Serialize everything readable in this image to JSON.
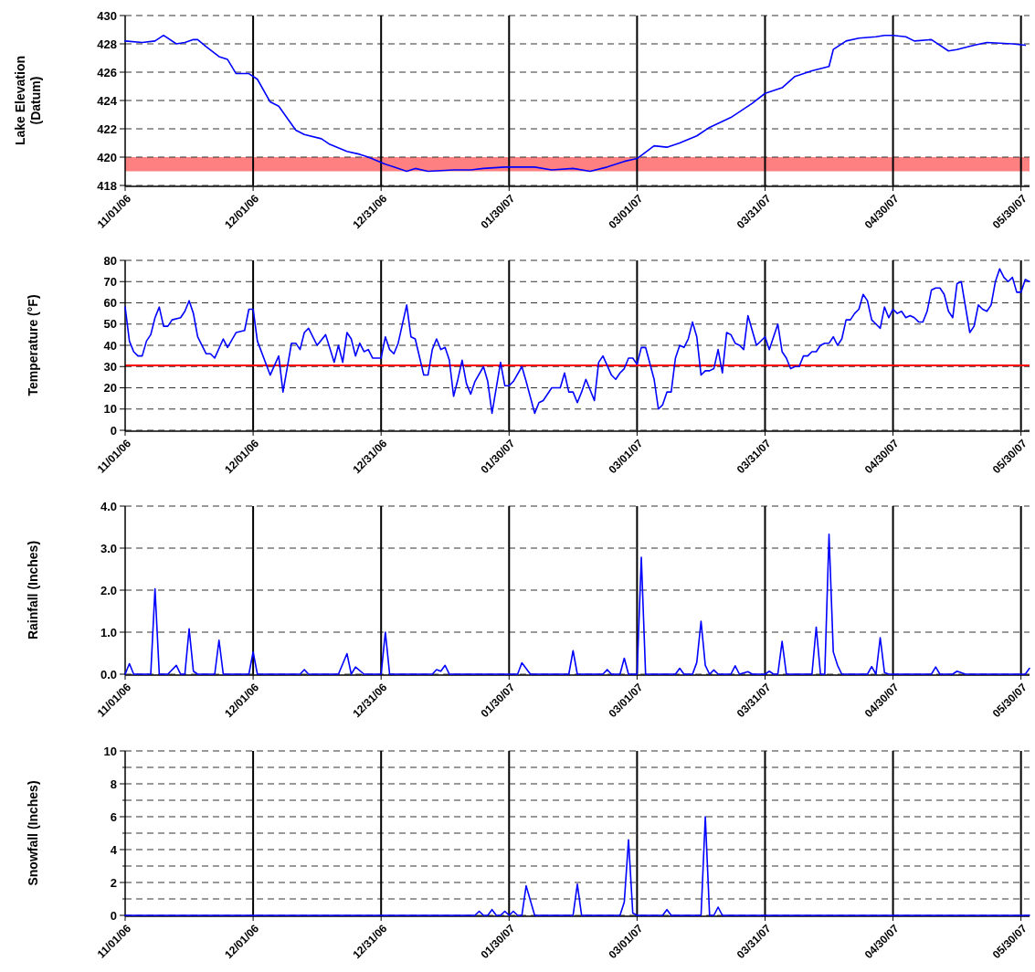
{
  "chart_data": [
    {
      "type": "line",
      "ylabel": "Lake Elevation\n(Datum)",
      "xlim": [
        "2006-11-01",
        "2007-06-01"
      ],
      "xticks": [
        {
          "value": "2006-11-01",
          "label": "11/01/06"
        },
        {
          "value": "2006-12-01",
          "label": "12/01/06"
        },
        {
          "value": "2006-12-31",
          "label": "12/31/06"
        },
        {
          "value": "2007-01-30",
          "label": "01/30/07"
        },
        {
          "value": "2007-03-01",
          "label": "03/01/07"
        },
        {
          "value": "2007-03-31",
          "label": "03/31/07"
        },
        {
          "value": "2007-04-30",
          "label": "04/30/07"
        },
        {
          "value": "2007-05-30",
          "label": "05/30/07"
        }
      ],
      "ylim": [
        418,
        430
      ],
      "yticks": [
        418,
        420,
        422,
        424,
        426,
        428,
        430
      ],
      "grid": true,
      "bands": [
        {
          "axis": "y",
          "from": 419,
          "to": 420,
          "color": "#ff8080"
        }
      ],
      "x": [
        "2006-11-01",
        "2006-11-05",
        "2006-11-08",
        "2006-11-10",
        "2006-11-13",
        "2006-11-15",
        "2006-11-17",
        "2006-11-18",
        "2006-11-20",
        "2006-11-23",
        "2006-11-25",
        "2006-11-27",
        "2006-11-30",
        "2006-12-02",
        "2006-12-05",
        "2006-12-07",
        "2006-12-11",
        "2006-12-13",
        "2006-12-17",
        "2006-12-19",
        "2006-12-23",
        "2006-12-26",
        "2006-12-28",
        "2007-01-01",
        "2007-01-03",
        "2007-01-06",
        "2007-01-08",
        "2007-01-11",
        "2007-01-17",
        "2007-01-21",
        "2007-01-24",
        "2007-01-29",
        "2007-02-05",
        "2007-02-09",
        "2007-02-14",
        "2007-02-18",
        "2007-02-22",
        "2007-02-26",
        "2007-03-01",
        "2007-03-05",
        "2007-03-08",
        "2007-03-11",
        "2007-03-15",
        "2007-03-18",
        "2007-03-23",
        "2007-03-28",
        "2007-03-31",
        "2007-04-04",
        "2007-04-07",
        "2007-04-11",
        "2007-04-15",
        "2007-04-16",
        "2007-04-19",
        "2007-04-22",
        "2007-04-26",
        "2007-04-28",
        "2007-04-30",
        "2007-05-03",
        "2007-05-05",
        "2007-05-09",
        "2007-05-13",
        "2007-05-15",
        "2007-05-19",
        "2007-05-22",
        "2007-05-28",
        "2007-05-31"
      ],
      "series": [
        {
          "color": "#0000ff",
          "values": [
            428.2,
            428.1,
            428.2,
            428.6,
            428.0,
            428.1,
            428.3,
            428.3,
            427.8,
            427.1,
            426.9,
            425.9,
            425.9,
            425.5,
            423.9,
            423.6,
            421.9,
            421.6,
            421.3,
            420.9,
            420.4,
            420.2,
            420.0,
            419.5,
            419.3,
            419.0,
            419.2,
            419.0,
            419.1,
            419.1,
            419.2,
            419.3,
            419.3,
            419.1,
            419.2,
            419.0,
            419.3,
            419.7,
            419.9,
            420.8,
            420.7,
            421.0,
            421.5,
            422.1,
            422.8,
            423.8,
            424.5,
            424.9,
            425.7,
            426.1,
            426.4,
            427.6,
            428.2,
            428.4,
            428.5,
            428.6,
            428.6,
            428.5,
            428.2,
            428.3,
            427.5,
            427.6,
            427.9,
            428.1,
            428.0,
            427.9
          ]
        }
      ]
    },
    {
      "type": "line",
      "ylabel": "Temperature (°F)",
      "xlim": [
        "2006-11-01",
        "2007-06-01"
      ],
      "xticks": [
        {
          "value": "2006-11-01",
          "label": "11/01/06"
        },
        {
          "value": "2006-12-01",
          "label": "12/01/06"
        },
        {
          "value": "2006-12-31",
          "label": "12/31/06"
        },
        {
          "value": "2007-01-30",
          "label": "01/30/07"
        },
        {
          "value": "2007-03-01",
          "label": "03/01/07"
        },
        {
          "value": "2007-03-31",
          "label": "03/31/07"
        },
        {
          "value": "2007-04-30",
          "label": "04/30/07"
        },
        {
          "value": "2007-05-30",
          "label": "05/30/07"
        }
      ],
      "ylim": [
        0,
        80
      ],
      "yticks": [
        0,
        10,
        20,
        30,
        40,
        50,
        60,
        70,
        80
      ],
      "grid": true,
      "ref_lines": [
        {
          "axis": "y",
          "value": 30.5,
          "color": "#ff0000"
        }
      ],
      "x": [
        "2006-11-01",
        "2006-11-02",
        "2006-11-03",
        "2006-11-04",
        "2006-11-05",
        "2006-11-06",
        "2006-11-07",
        "2006-11-08",
        "2006-11-09",
        "2006-11-10",
        "2006-11-11",
        "2006-11-12",
        "2006-11-14",
        "2006-11-15",
        "2006-11-16",
        "2006-11-17",
        "2006-11-18",
        "2006-11-20",
        "2006-11-21",
        "2006-11-22",
        "2006-11-24",
        "2006-11-25",
        "2006-11-27",
        "2006-11-29",
        "2006-11-30",
        "2006-12-01",
        "2006-12-02",
        "2006-12-05",
        "2006-12-07",
        "2006-12-08",
        "2006-12-10",
        "2006-12-11",
        "2006-12-12",
        "2006-12-13",
        "2006-12-14",
        "2006-12-16",
        "2006-12-18",
        "2006-12-20",
        "2006-12-21",
        "2006-12-22",
        "2006-12-23",
        "2006-12-24",
        "2006-12-25",
        "2006-12-26",
        "2006-12-27",
        "2006-12-28",
        "2006-12-29",
        "2006-12-31",
        "2007-01-01",
        "2007-01-02",
        "2007-01-03",
        "2007-01-04",
        "2007-01-06",
        "2007-01-07",
        "2007-01-08",
        "2007-01-10",
        "2007-01-11",
        "2007-01-12",
        "2007-01-13",
        "2007-01-14",
        "2007-01-15",
        "2007-01-16",
        "2007-01-17",
        "2007-01-18",
        "2007-01-19",
        "2007-01-20",
        "2007-01-21",
        "2007-01-22",
        "2007-01-24",
        "2007-01-25",
        "2007-01-26",
        "2007-01-28",
        "2007-01-29",
        "2007-01-30",
        "2007-01-31",
        "2007-02-02",
        "2007-02-03",
        "2007-02-05",
        "2007-02-06",
        "2007-02-07",
        "2007-02-09",
        "2007-02-11",
        "2007-02-12",
        "2007-02-13",
        "2007-02-14",
        "2007-02-15",
        "2007-02-16",
        "2007-02-17",
        "2007-02-18",
        "2007-02-19",
        "2007-02-20",
        "2007-02-21",
        "2007-02-23",
        "2007-02-24",
        "2007-02-25",
        "2007-02-26",
        "2007-02-27",
        "2007-02-28",
        "2007-03-01",
        "2007-03-02",
        "2007-03-03",
        "2007-03-05",
        "2007-03-06",
        "2007-03-07",
        "2007-03-08",
        "2007-03-09",
        "2007-03-10",
        "2007-03-11",
        "2007-03-12",
        "2007-03-13",
        "2007-03-14",
        "2007-03-15",
        "2007-03-16",
        "2007-03-17",
        "2007-03-18",
        "2007-03-19",
        "2007-03-20",
        "2007-03-21",
        "2007-03-22",
        "2007-03-23",
        "2007-03-24",
        "2007-03-25",
        "2007-03-26",
        "2007-03-27",
        "2007-03-29",
        "2007-03-31",
        "2007-04-01",
        "2007-04-03",
        "2007-04-04",
        "2007-04-05",
        "2007-04-06",
        "2007-04-07",
        "2007-04-08",
        "2007-04-09",
        "2007-04-10",
        "2007-04-11",
        "2007-04-12",
        "2007-04-13",
        "2007-04-14",
        "2007-04-15",
        "2007-04-16",
        "2007-04-17",
        "2007-04-18",
        "2007-04-19",
        "2007-04-20",
        "2007-04-21",
        "2007-04-22",
        "2007-04-23",
        "2007-04-24",
        "2007-04-25",
        "2007-04-26",
        "2007-04-27",
        "2007-04-28",
        "2007-04-29",
        "2007-04-30",
        "2007-05-01",
        "2007-05-02",
        "2007-05-03",
        "2007-05-04",
        "2007-05-05",
        "2007-05-06",
        "2007-05-07",
        "2007-05-08",
        "2007-05-09",
        "2007-05-10",
        "2007-05-11",
        "2007-05-12",
        "2007-05-13",
        "2007-05-14",
        "2007-05-15",
        "2007-05-16",
        "2007-05-17",
        "2007-05-18",
        "2007-05-19",
        "2007-05-20",
        "2007-05-21",
        "2007-05-22",
        "2007-05-23",
        "2007-05-24",
        "2007-05-25",
        "2007-05-26",
        "2007-05-27",
        "2007-05-28",
        "2007-05-29",
        "2007-05-30",
        "2007-05-31",
        "2007-06-01"
      ],
      "series": [
        {
          "color": "#0000ff",
          "values": [
            58,
            42,
            37,
            35,
            35,
            42,
            45,
            53,
            58,
            49,
            49,
            52,
            53,
            56,
            61,
            55,
            44,
            36,
            36,
            34,
            43,
            39,
            46,
            47,
            57,
            57,
            42,
            26,
            35,
            18,
            41,
            41,
            38,
            46,
            48,
            40,
            45,
            32,
            40,
            32,
            46,
            43,
            35,
            41,
            37,
            38,
            34,
            34,
            44,
            38,
            36,
            41,
            59,
            44,
            43,
            26,
            26,
            38,
            43,
            38,
            39,
            33,
            16,
            24,
            33,
            22,
            17,
            23,
            30,
            23,
            8,
            32,
            21,
            21,
            23,
            30,
            23,
            8,
            13,
            14,
            20,
            20,
            27,
            18,
            18,
            13,
            18,
            24,
            19,
            14,
            32,
            35,
            26,
            24,
            27,
            29,
            34,
            34,
            31,
            39,
            39,
            24,
            10,
            12,
            18,
            18,
            34,
            40,
            39,
            43,
            51,
            44,
            26,
            28,
            28,
            29,
            38,
            27,
            46,
            45,
            41,
            40,
            38,
            54,
            40,
            44,
            38,
            50,
            37,
            34,
            29,
            30,
            30,
            35,
            35,
            37,
            37,
            40,
            41,
            41,
            44,
            40,
            43,
            52,
            52,
            55,
            57,
            64,
            61,
            52,
            50,
            48,
            58,
            53,
            57,
            55,
            56,
            53,
            54,
            53,
            51,
            51,
            56,
            66,
            67,
            67,
            64,
            56,
            53,
            69,
            70,
            58,
            46,
            49,
            59,
            57,
            56,
            59,
            70,
            76,
            72,
            70,
            72,
            65,
            65,
            71,
            70
          ]
        }
      ]
    },
    {
      "type": "line",
      "ylabel": "Rainfall (Inches)",
      "xlim": [
        "2006-11-01",
        "2007-06-01"
      ],
      "xticks": [
        {
          "value": "2006-11-01",
          "label": "11/01/06"
        },
        {
          "value": "2006-12-01",
          "label": "12/01/06"
        },
        {
          "value": "2006-12-31",
          "label": "12/31/06"
        },
        {
          "value": "2007-01-30",
          "label": "01/30/07"
        },
        {
          "value": "2007-03-01",
          "label": "03/01/07"
        },
        {
          "value": "2007-03-31",
          "label": "03/31/07"
        },
        {
          "value": "2007-04-30",
          "label": "04/30/07"
        },
        {
          "value": "2007-05-30",
          "label": "05/30/07"
        }
      ],
      "ylim": [
        0,
        4
      ],
      "yticks": [
        {
          "value": 0,
          "label": "0.0"
        },
        {
          "value": 1,
          "label": "1.0"
        },
        {
          "value": 2,
          "label": "2.0"
        },
        {
          "value": 3,
          "label": "3.0"
        },
        {
          "value": 4,
          "label": "4.0"
        }
      ],
      "grid": true,
      "x": [
        "2006-11-01",
        "2006-11-02",
        "2006-11-03",
        "2006-11-07",
        "2006-11-08",
        "2006-11-09",
        "2006-11-11",
        "2006-11-13",
        "2006-11-14",
        "2006-11-15",
        "2006-11-16",
        "2006-11-17",
        "2006-11-18",
        "2006-11-22",
        "2006-11-23",
        "2006-11-24",
        "2006-11-30",
        "2006-12-01",
        "2006-12-02",
        "2006-12-12",
        "2006-12-13",
        "2006-12-14",
        "2006-12-21",
        "2006-12-23",
        "2006-12-24",
        "2006-12-25",
        "2006-12-27",
        "2006-12-31",
        "2007-01-01",
        "2007-01-02",
        "2007-01-12",
        "2007-01-13",
        "2007-01-14",
        "2007-01-15",
        "2007-01-16",
        "2007-02-01",
        "2007-02-02",
        "2007-02-04",
        "2007-02-13",
        "2007-02-14",
        "2007-02-15",
        "2007-02-21",
        "2007-02-22",
        "2007-02-23",
        "2007-02-25",
        "2007-02-26",
        "2007-02-27",
        "2007-03-01",
        "2007-03-02",
        "2007-03-03",
        "2007-03-10",
        "2007-03-11",
        "2007-03-12",
        "2007-03-14",
        "2007-03-15",
        "2007-03-16",
        "2007-03-17",
        "2007-03-18",
        "2007-03-19",
        "2007-03-20",
        "2007-03-23",
        "2007-03-24",
        "2007-03-25",
        "2007-03-27",
        "2007-03-28",
        "2007-03-31",
        "2007-04-01",
        "2007-04-02",
        "2007-04-03",
        "2007-04-04",
        "2007-04-05",
        "2007-04-11",
        "2007-04-12",
        "2007-04-13",
        "2007-04-14",
        "2007-04-15",
        "2007-04-16",
        "2007-04-17",
        "2007-04-18",
        "2007-04-24",
        "2007-04-25",
        "2007-04-26",
        "2007-04-27",
        "2007-04-28",
        "2007-04-29",
        "2007-05-09",
        "2007-05-10",
        "2007-05-11",
        "2007-05-14",
        "2007-05-15",
        "2007-05-17",
        "2007-05-31",
        "2007-06-01"
      ],
      "series": [
        {
          "color": "#0000ff",
          "values": [
            0,
            0.25,
            0,
            0,
            2.03,
            0,
            0,
            0.21,
            0,
            0,
            1.08,
            0.07,
            0,
            0,
            0.81,
            0,
            0,
            0.53,
            0,
            0,
            0.11,
            0,
            0,
            0.49,
            0,
            0.17,
            0,
            0,
            1.0,
            0,
            0,
            0.11,
            0.07,
            0.21,
            0,
            0,
            0.27,
            0,
            0,
            0.56,
            0,
            0,
            0.11,
            0,
            0,
            0.38,
            0,
            0,
            2.78,
            0,
            0,
            0.14,
            0,
            0,
            0.28,
            1.26,
            0.21,
            0,
            0.1,
            0,
            0,
            0.2,
            0,
            0.06,
            0,
            0,
            0.07,
            0,
            0,
            0.78,
            0,
            0,
            1.12,
            0,
            0,
            3.33,
            0.53,
            0.21,
            0,
            0,
            0.18,
            0,
            0.87,
            0.04,
            0,
            0,
            0.17,
            0,
            0,
            0.07,
            0,
            0,
            0.14
          ]
        }
      ]
    },
    {
      "type": "line",
      "ylabel": "Snowfall (Inches)",
      "xlim": [
        "2006-11-01",
        "2007-06-01"
      ],
      "xticks": [
        {
          "value": "2006-11-01",
          "label": "11/01/06"
        },
        {
          "value": "2006-12-01",
          "label": "12/01/06"
        },
        {
          "value": "2006-12-31",
          "label": "12/31/06"
        },
        {
          "value": "2007-01-30",
          "label": "01/30/07"
        },
        {
          "value": "2007-03-01",
          "label": "03/01/07"
        },
        {
          "value": "2007-03-31",
          "label": "03/31/07"
        },
        {
          "value": "2007-04-30",
          "label": "04/30/07"
        },
        {
          "value": "2007-05-30",
          "label": "05/30/07"
        }
      ],
      "ylim": [
        0,
        10
      ],
      "yticks": [
        0,
        {
          "value": 1,
          "label": null
        },
        2,
        {
          "value": 3,
          "label": null
        },
        4,
        {
          "value": 5,
          "label": null
        },
        6,
        {
          "value": 7,
          "label": null
        },
        8,
        {
          "value": 9,
          "label": null
        },
        10
      ],
      "grid": true,
      "x": [
        "2006-11-01",
        "2007-01-22",
        "2007-01-23",
        "2007-01-24",
        "2007-01-25",
        "2007-01-26",
        "2007-01-27",
        "2007-01-28",
        "2007-01-29",
        "2007-01-30",
        "2007-01-31",
        "2007-02-01",
        "2007-02-02",
        "2007-02-03",
        "2007-02-05",
        "2007-02-14",
        "2007-02-15",
        "2007-02-16",
        "2007-02-25",
        "2007-02-26",
        "2007-02-27",
        "2007-02-28",
        "2007-03-01",
        "2007-03-07",
        "2007-03-08",
        "2007-03-09",
        "2007-03-16",
        "2007-03-17",
        "2007-03-18",
        "2007-03-19",
        "2007-03-20",
        "2007-03-21",
        "2007-06-01"
      ],
      "series": [
        {
          "color": "#0000ff",
          "values": [
            0,
            0,
            0.25,
            0,
            0,
            0.35,
            0,
            0,
            0.25,
            0,
            0.25,
            0,
            0,
            1.8,
            0,
            0,
            1.9,
            0,
            0,
            0.8,
            4.6,
            0.14,
            0,
            0,
            0.35,
            0,
            0,
            6.0,
            0,
            0,
            0.5,
            0,
            0
          ]
        }
      ]
    }
  ]
}
